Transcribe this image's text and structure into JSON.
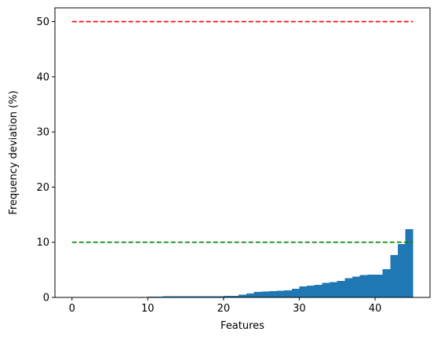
{
  "chart_data": {
    "type": "bar",
    "title": "",
    "xlabel": "Features",
    "ylabel": "Frequency deviation (%)",
    "xlim": [
      -2.25,
      47.25
    ],
    "ylim": [
      0,
      52.5
    ],
    "xticks": [
      0,
      10,
      20,
      30,
      40
    ],
    "yticks": [
      0,
      10,
      20,
      30,
      40,
      50
    ],
    "grid": false,
    "bar_color": "#1f77b4",
    "bar_width": 1,
    "x": [
      0,
      1,
      2,
      3,
      4,
      5,
      6,
      7,
      8,
      9,
      10,
      11,
      12,
      13,
      14,
      15,
      16,
      17,
      18,
      19,
      20,
      21,
      22,
      23,
      24,
      25,
      26,
      27,
      28,
      29,
      30,
      31,
      32,
      33,
      34,
      35,
      36,
      37,
      38,
      39,
      40,
      41,
      42,
      43,
      44
    ],
    "values": [
      0,
      0,
      0,
      0,
      0,
      0,
      0,
      0,
      0.1,
      0.1,
      0.15,
      0.15,
      0.2,
      0.2,
      0.2,
      0.2,
      0.2,
      0.2,
      0.2,
      0.2,
      0.25,
      0.3,
      0.5,
      0.7,
      1.0,
      1.05,
      1.15,
      1.2,
      1.3,
      1.6,
      2.0,
      2.15,
      2.3,
      2.6,
      2.8,
      3.0,
      3.5,
      3.8,
      4.05,
      4.1,
      4.1,
      5.1,
      7.7,
      9.7,
      12.4
    ],
    "reference_lines": [
      {
        "y": 50,
        "x_range": [
          0,
          45
        ],
        "color": "#ff0000",
        "style": "dashed"
      },
      {
        "y": 10,
        "x_range": [
          0,
          45
        ],
        "color": "#008000",
        "style": "dashed"
      }
    ]
  }
}
